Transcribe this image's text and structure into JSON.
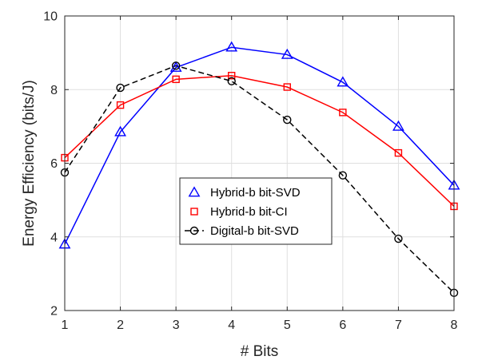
{
  "chart_data": {
    "type": "line",
    "xlabel": "# Bits",
    "ylabel": "Energy Efficiency (bits/J)",
    "xlim": [
      1,
      8
    ],
    "ylim": [
      2,
      10
    ],
    "xticks": [
      1,
      2,
      3,
      4,
      5,
      6,
      7,
      8
    ],
    "yticks": [
      2,
      4,
      6,
      8,
      10
    ],
    "grid": true,
    "legend_position": "center",
    "series": [
      {
        "name": "Hybrid-b bit-SVD",
        "color": "#0000ff",
        "marker": "triangle",
        "line_style": "solid",
        "x": [
          1,
          2,
          3,
          4,
          5,
          6,
          7,
          8
        ],
        "y": [
          3.8,
          6.85,
          8.6,
          9.15,
          8.95,
          8.2,
          7.0,
          5.4
        ]
      },
      {
        "name": "Hybrid-b bit-CI",
        "color": "#ff0000",
        "marker": "square",
        "line_style": "solid",
        "x": [
          1,
          2,
          3,
          4,
          5,
          6,
          7,
          8
        ],
        "y": [
          6.15,
          7.58,
          8.28,
          8.38,
          8.07,
          7.38,
          6.28,
          4.83
        ]
      },
      {
        "name": "Digital-b bit-SVD",
        "color": "#000000",
        "marker": "circle",
        "line_style": "dashed",
        "x": [
          1,
          2,
          3,
          4,
          5,
          6,
          7,
          8
        ],
        "y": [
          5.75,
          8.05,
          8.65,
          8.23,
          7.18,
          5.67,
          3.95,
          2.48
        ]
      }
    ]
  }
}
